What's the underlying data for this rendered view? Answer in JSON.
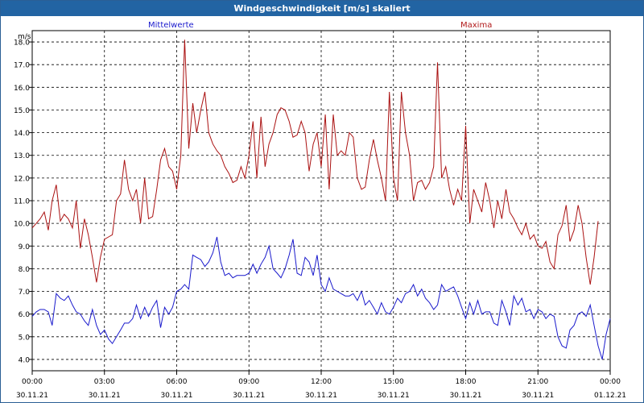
{
  "window": {
    "title": "Windgeschwindigkeit [m/s] skaliert"
  },
  "chart_data": {
    "type": "line",
    "title": "Windgeschwindigkeit [m/s] skaliert",
    "ylabel": "m/s",
    "xlabel": "",
    "ylim": [
      3.5,
      18.5
    ],
    "y_ticks": [
      "4.0",
      "5.0",
      "6.0",
      "7.0",
      "8.0",
      "9.0",
      "10.0",
      "11.0",
      "12.0",
      "13.0",
      "14.0",
      "15.0",
      "16.0",
      "17.0",
      "18.0"
    ],
    "x_ticks": [
      {
        "time": "00:00",
        "date": "30.11.21"
      },
      {
        "time": "03:00",
        "date": "30.11.21"
      },
      {
        "time": "06:00",
        "date": "30.11.21"
      },
      {
        "time": "09:00",
        "date": "30.11.21"
      },
      {
        "time": "12:00",
        "date": "30.11.21"
      },
      {
        "time": "15:00",
        "date": "30.11.21"
      },
      {
        "time": "18:00",
        "date": "30.11.21"
      },
      {
        "time": "21:00",
        "date": "30.11.21"
      },
      {
        "time": "00:00",
        "date": "01.12.21"
      }
    ],
    "grid": true,
    "legend_placement": "top",
    "colors": {
      "mean": "#1a1acc",
      "max": "#aa1111",
      "grid": "#000000",
      "title_bar": "#2264a3"
    },
    "series": [
      {
        "name": "Mittelwerte",
        "points": [
          [
            0,
            5.9
          ],
          [
            0.17,
            6.1
          ],
          [
            0.33,
            6.2
          ],
          [
            0.5,
            6.2
          ],
          [
            0.67,
            6.1
          ],
          [
            0.83,
            5.5
          ],
          [
            1,
            6.9
          ],
          [
            1.17,
            6.7
          ],
          [
            1.33,
            6.6
          ],
          [
            1.5,
            6.8
          ],
          [
            1.67,
            6.4
          ],
          [
            1.83,
            6.1
          ],
          [
            2,
            6.0
          ],
          [
            2.17,
            5.7
          ],
          [
            2.33,
            5.5
          ],
          [
            2.5,
            6.2
          ],
          [
            2.67,
            5.5
          ],
          [
            2.83,
            5.1
          ],
          [
            3,
            5.3
          ],
          [
            3.17,
            4.9
          ],
          [
            3.33,
            4.7
          ],
          [
            3.5,
            5.0
          ],
          [
            3.67,
            5.3
          ],
          [
            3.83,
            5.6
          ],
          [
            4,
            5.6
          ],
          [
            4.17,
            5.8
          ],
          [
            4.33,
            6.4
          ],
          [
            4.5,
            5.8
          ],
          [
            4.67,
            6.3
          ],
          [
            4.83,
            5.9
          ],
          [
            5,
            6.3
          ],
          [
            5.17,
            6.6
          ],
          [
            5.33,
            5.4
          ],
          [
            5.5,
            6.3
          ],
          [
            5.67,
            6.0
          ],
          [
            5.83,
            6.3
          ],
          [
            6,
            7.0
          ],
          [
            6.17,
            7.1
          ],
          [
            6.33,
            7.3
          ],
          [
            6.5,
            7.1
          ],
          [
            6.67,
            8.6
          ],
          [
            6.83,
            8.5
          ],
          [
            7,
            8.4
          ],
          [
            7.17,
            8.1
          ],
          [
            7.33,
            8.3
          ],
          [
            7.5,
            8.7
          ],
          [
            7.67,
            9.4
          ],
          [
            7.83,
            8.3
          ],
          [
            8,
            7.7
          ],
          [
            8.17,
            7.8
          ],
          [
            8.33,
            7.6
          ],
          [
            8.5,
            7.7
          ],
          [
            8.67,
            7.7
          ],
          [
            8.83,
            7.7
          ],
          [
            9,
            7.8
          ],
          [
            9.17,
            8.2
          ],
          [
            9.33,
            7.8
          ],
          [
            9.5,
            8.2
          ],
          [
            9.67,
            8.5
          ],
          [
            9.83,
            9.0
          ],
          [
            10,
            8.0
          ],
          [
            10.17,
            7.8
          ],
          [
            10.33,
            7.6
          ],
          [
            10.5,
            8.0
          ],
          [
            10.67,
            8.6
          ],
          [
            10.83,
            9.3
          ],
          [
            11,
            7.8
          ],
          [
            11.17,
            7.7
          ],
          [
            11.33,
            8.5
          ],
          [
            11.5,
            8.3
          ],
          [
            11.67,
            7.7
          ],
          [
            11.83,
            8.6
          ],
          [
            12,
            7.3
          ],
          [
            12.17,
            7.0
          ],
          [
            12.33,
            7.6
          ],
          [
            12.5,
            7.1
          ],
          [
            12.67,
            7.0
          ],
          [
            12.83,
            6.9
          ],
          [
            13,
            6.8
          ],
          [
            13.17,
            6.8
          ],
          [
            13.33,
            6.9
          ],
          [
            13.5,
            6.6
          ],
          [
            13.67,
            7.0
          ],
          [
            13.83,
            6.4
          ],
          [
            14,
            6.6
          ],
          [
            14.17,
            6.3
          ],
          [
            14.33,
            6.0
          ],
          [
            14.5,
            6.5
          ],
          [
            14.67,
            6.1
          ],
          [
            14.83,
            6.0
          ],
          [
            15,
            6.3
          ],
          [
            15.17,
            6.7
          ],
          [
            15.33,
            6.5
          ],
          [
            15.5,
            6.9
          ],
          [
            15.67,
            7.0
          ],
          [
            15.83,
            7.3
          ],
          [
            16,
            6.8
          ],
          [
            16.17,
            7.1
          ],
          [
            16.33,
            6.7
          ],
          [
            16.5,
            6.5
          ],
          [
            16.67,
            6.2
          ],
          [
            16.83,
            6.4
          ],
          [
            17,
            7.3
          ],
          [
            17.17,
            7.0
          ],
          [
            17.33,
            7.1
          ],
          [
            17.5,
            7.2
          ],
          [
            17.67,
            6.8
          ],
          [
            17.83,
            6.3
          ],
          [
            18,
            5.8
          ],
          [
            18.17,
            6.5
          ],
          [
            18.33,
            6.0
          ],
          [
            18.5,
            6.6
          ],
          [
            18.67,
            6.0
          ],
          [
            18.83,
            6.1
          ],
          [
            19,
            6.1
          ],
          [
            19.17,
            5.6
          ],
          [
            19.33,
            5.5
          ],
          [
            19.5,
            6.6
          ],
          [
            19.67,
            6.1
          ],
          [
            19.83,
            5.5
          ],
          [
            20,
            6.8
          ],
          [
            20.17,
            6.4
          ],
          [
            20.33,
            6.7
          ],
          [
            20.5,
            6.1
          ],
          [
            20.67,
            6.2
          ],
          [
            20.83,
            5.8
          ],
          [
            21,
            6.2
          ],
          [
            21.17,
            6.1
          ],
          [
            21.33,
            5.8
          ],
          [
            21.5,
            6.0
          ],
          [
            21.67,
            5.9
          ],
          [
            21.83,
            5.0
          ],
          [
            22,
            4.6
          ],
          [
            22.17,
            4.5
          ],
          [
            22.33,
            5.3
          ],
          [
            22.5,
            5.5
          ],
          [
            22.67,
            6.0
          ],
          [
            22.83,
            6.1
          ],
          [
            23,
            5.9
          ],
          [
            23.17,
            6.4
          ],
          [
            23.33,
            5.5
          ],
          [
            23.5,
            4.6
          ],
          [
            23.67,
            4.0
          ],
          [
            23.83,
            5.1
          ],
          [
            24,
            5.8
          ]
        ]
      },
      {
        "name": "Maxima",
        "points": [
          [
            0,
            9.8
          ],
          [
            0.17,
            10.0
          ],
          [
            0.33,
            10.2
          ],
          [
            0.5,
            10.5
          ],
          [
            0.67,
            9.7
          ],
          [
            0.83,
            11.0
          ],
          [
            1,
            11.7
          ],
          [
            1.17,
            10.1
          ],
          [
            1.33,
            10.4
          ],
          [
            1.5,
            10.2
          ],
          [
            1.67,
            9.8
          ],
          [
            1.83,
            11.0
          ],
          [
            2,
            8.9
          ],
          [
            2.17,
            10.2
          ],
          [
            2.33,
            9.5
          ],
          [
            2.5,
            8.5
          ],
          [
            2.67,
            7.4
          ],
          [
            2.83,
            8.5
          ],
          [
            3,
            9.3
          ],
          [
            3.17,
            9.4
          ],
          [
            3.33,
            9.5
          ],
          [
            3.5,
            11.0
          ],
          [
            3.67,
            11.3
          ],
          [
            3.83,
            12.8
          ],
          [
            4,
            11.5
          ],
          [
            4.17,
            11.0
          ],
          [
            4.33,
            11.5
          ],
          [
            4.5,
            10.0
          ],
          [
            4.67,
            12.0
          ],
          [
            4.83,
            10.2
          ],
          [
            5,
            10.3
          ],
          [
            5.17,
            11.5
          ],
          [
            5.33,
            12.8
          ],
          [
            5.5,
            13.3
          ],
          [
            5.67,
            12.5
          ],
          [
            5.83,
            12.3
          ],
          [
            6,
            11.5
          ],
          [
            6.17,
            13.0
          ],
          [
            6.33,
            18.1
          ],
          [
            6.5,
            13.3
          ],
          [
            6.67,
            15.3
          ],
          [
            6.83,
            14.0
          ],
          [
            7,
            15.0
          ],
          [
            7.17,
            15.8
          ],
          [
            7.33,
            14.0
          ],
          [
            7.5,
            13.5
          ],
          [
            7.67,
            13.2
          ],
          [
            7.83,
            13.0
          ],
          [
            8,
            12.5
          ],
          [
            8.17,
            12.2
          ],
          [
            8.33,
            11.8
          ],
          [
            8.5,
            11.9
          ],
          [
            8.67,
            12.5
          ],
          [
            8.83,
            12.0
          ],
          [
            9,
            13.0
          ],
          [
            9.17,
            14.5
          ],
          [
            9.33,
            12.0
          ],
          [
            9.5,
            14.7
          ],
          [
            9.67,
            12.5
          ],
          [
            9.83,
            13.5
          ],
          [
            10,
            14.0
          ],
          [
            10.17,
            14.8
          ],
          [
            10.33,
            15.1
          ],
          [
            10.5,
            15.0
          ],
          [
            10.67,
            14.5
          ],
          [
            10.83,
            13.8
          ],
          [
            11,
            13.9
          ],
          [
            11.17,
            14.5
          ],
          [
            11.33,
            14.0
          ],
          [
            11.5,
            12.3
          ],
          [
            11.67,
            13.5
          ],
          [
            11.83,
            14.0
          ],
          [
            12,
            12.5
          ],
          [
            12.17,
            14.8
          ],
          [
            12.33,
            11.5
          ],
          [
            12.5,
            14.8
          ],
          [
            12.67,
            13.0
          ],
          [
            12.83,
            13.2
          ],
          [
            13,
            13.0
          ],
          [
            13.17,
            14.0
          ],
          [
            13.33,
            13.8
          ],
          [
            13.5,
            12.0
          ],
          [
            13.67,
            11.5
          ],
          [
            13.83,
            11.6
          ],
          [
            14,
            12.8
          ],
          [
            14.17,
            13.7
          ],
          [
            14.33,
            12.8
          ],
          [
            14.5,
            12.0
          ],
          [
            14.67,
            11.0
          ],
          [
            14.83,
            15.8
          ],
          [
            15,
            12.0
          ],
          [
            15.17,
            11.0
          ],
          [
            15.33,
            15.8
          ],
          [
            15.5,
            14.0
          ],
          [
            15.67,
            13.0
          ],
          [
            15.83,
            11.0
          ],
          [
            16,
            11.8
          ],
          [
            16.17,
            11.9
          ],
          [
            16.33,
            11.5
          ],
          [
            16.5,
            11.8
          ],
          [
            16.67,
            12.5
          ],
          [
            16.83,
            17.1
          ],
          [
            17,
            12.0
          ],
          [
            17.17,
            12.5
          ],
          [
            17.33,
            11.5
          ],
          [
            17.5,
            10.8
          ],
          [
            17.67,
            11.5
          ],
          [
            17.83,
            11.0
          ],
          [
            18,
            14.3
          ],
          [
            18.17,
            10.0
          ],
          [
            18.33,
            11.5
          ],
          [
            18.5,
            11.0
          ],
          [
            18.67,
            10.5
          ],
          [
            18.83,
            11.8
          ],
          [
            19,
            11.0
          ],
          [
            19.17,
            9.8
          ],
          [
            19.33,
            11.0
          ],
          [
            19.5,
            10.2
          ],
          [
            19.67,
            11.5
          ],
          [
            19.83,
            10.5
          ],
          [
            20,
            10.2
          ],
          [
            20.17,
            9.8
          ],
          [
            20.33,
            9.5
          ],
          [
            20.5,
            10.0
          ],
          [
            20.67,
            9.3
          ],
          [
            20.83,
            9.5
          ],
          [
            21,
            9.0
          ],
          [
            21.17,
            8.9
          ],
          [
            21.33,
            9.2
          ],
          [
            21.5,
            8.3
          ],
          [
            21.67,
            8.0
          ],
          [
            21.83,
            9.5
          ],
          [
            22,
            9.9
          ],
          [
            22.17,
            10.8
          ],
          [
            22.33,
            9.2
          ],
          [
            22.5,
            9.7
          ],
          [
            22.67,
            10.8
          ],
          [
            22.83,
            10.0
          ],
          [
            23,
            8.5
          ],
          [
            23.17,
            7.3
          ],
          [
            23.33,
            8.5
          ],
          [
            23.5,
            10.1
          ]
        ]
      }
    ]
  }
}
